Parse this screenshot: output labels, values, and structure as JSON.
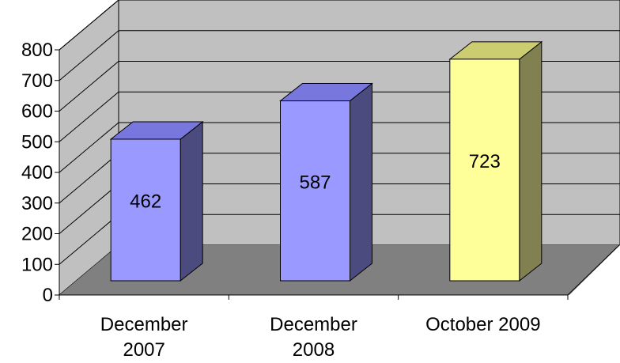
{
  "chart_data": {
    "type": "bar",
    "style": "3d-column",
    "categories": [
      [
        "December",
        "2007"
      ],
      [
        "December",
        "2008"
      ],
      [
        "October 2009"
      ]
    ],
    "values": [
      462,
      587,
      723
    ],
    "bar_colors": [
      "#9999ff",
      "#9999ff",
      "#ffff99"
    ],
    "side_colors": [
      "#4b4b80",
      "#4b4b80",
      "#808050"
    ],
    "top_colors": [
      "#7777dd",
      "#7777dd",
      "#cccc70"
    ],
    "title": "",
    "xlabel": "",
    "ylabel": "",
    "ylim": [
      0,
      800
    ],
    "yticks": [
      0,
      100,
      200,
      300,
      400,
      500,
      600,
      700,
      800
    ],
    "grid": true,
    "legend": "none",
    "wall_color": "#c0c0c0",
    "floor_color": "#808080"
  }
}
